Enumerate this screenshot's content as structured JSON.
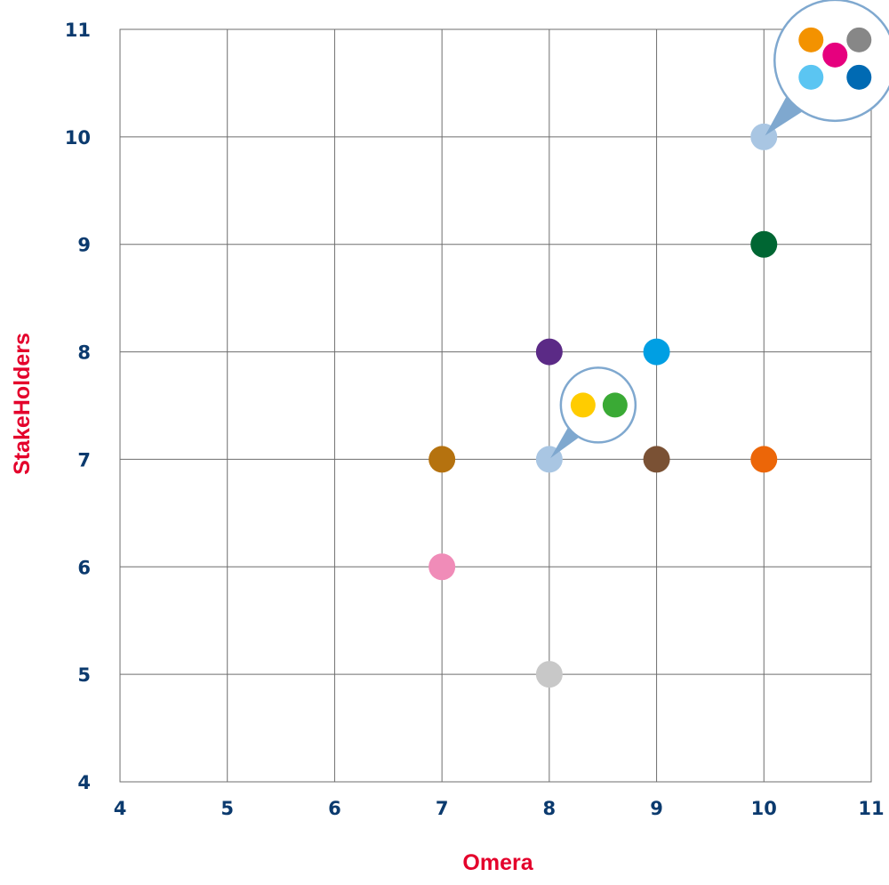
{
  "chart_data": {
    "type": "scatter",
    "title": "",
    "xlabel": "Omera",
    "ylabel": "StakeHolders",
    "xlim": [
      4,
      11
    ],
    "ylim": [
      4,
      11
    ],
    "x_ticks": [
      "4",
      "5",
      "6",
      "7",
      "8",
      "9",
      "10",
      "11"
    ],
    "y_ticks": [
      "4",
      "5",
      "6",
      "7",
      "8",
      "9",
      "10",
      "11"
    ],
    "grid": true,
    "axis_title_color": "#e4002b",
    "tick_label_color": "#0b3a6e",
    "points": [
      {
        "x": 7,
        "y": 7,
        "color": "#b5720f"
      },
      {
        "x": 7,
        "y": 6,
        "color": "#f08cb8"
      },
      {
        "x": 8,
        "y": 8,
        "color": "#5b2a86"
      },
      {
        "x": 8,
        "y": 7,
        "color": "#a9c6e3",
        "cluster": [
          {
            "color": "#ffcc00"
          },
          {
            "color": "#3aaa35"
          }
        ]
      },
      {
        "x": 8,
        "y": 5,
        "color": "#c8c8c8"
      },
      {
        "x": 9,
        "y": 8,
        "color": "#009fe3"
      },
      {
        "x": 9,
        "y": 7,
        "color": "#7a5134"
      },
      {
        "x": 10,
        "y": 10,
        "color": "#a9c6e3",
        "cluster": [
          {
            "color": "#f39200"
          },
          {
            "color": "#878787"
          },
          {
            "color": "#e6007e"
          },
          {
            "color": "#5bc5f2"
          },
          {
            "color": "#006ab3"
          }
        ]
      },
      {
        "x": 10,
        "y": 9,
        "color": "#006633"
      },
      {
        "x": 10,
        "y": 7,
        "color": "#ec6608"
      }
    ]
  }
}
